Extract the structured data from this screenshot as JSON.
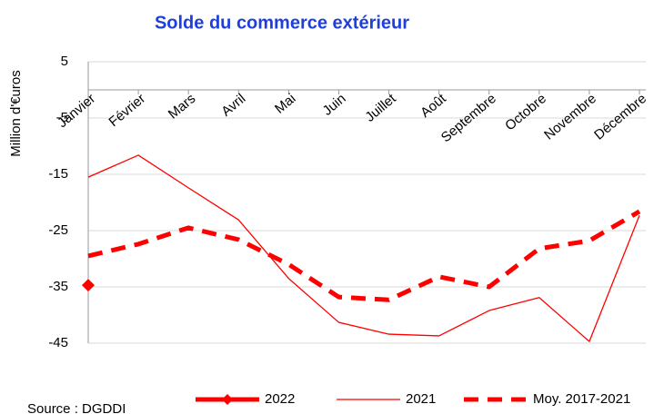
{
  "chart_data": {
    "type": "line",
    "title": "Solde du commerce extérieur",
    "y_label": "Million d'€uros",
    "source": "Source : DGDDI",
    "categories": [
      "Janvier",
      "Février",
      "Mars",
      "Avril",
      "Mai",
      "Juin",
      "Juillet",
      "Août",
      "Septembre",
      "Octobre",
      "Novembre",
      "Décembre"
    ],
    "series": [
      {
        "name": "2022",
        "color": "#ff0000",
        "values": [
          -34.7,
          null,
          null,
          null,
          null,
          null,
          null,
          null,
          null,
          null,
          null,
          null
        ]
      },
      {
        "name": "2021",
        "color": "#ff0000",
        "values": [
          -15.5,
          -11.6,
          -17.4,
          -23.1,
          -33.5,
          -41.3,
          -43.4,
          -43.7,
          -39.2,
          -36.9,
          -44.7,
          -22.3
        ]
      },
      {
        "name": "Moy. 2017-2021",
        "color": "#ff0000",
        "values": [
          -29.5,
          -27.4,
          -24.5,
          -26.6,
          -31.0,
          -36.8,
          -37.3,
          -33.2,
          -35.0,
          -28.2,
          -26.8,
          -21.6
        ]
      }
    ],
    "ylim": [
      -45,
      5
    ],
    "yticks": [
      5,
      -5,
      -15,
      -25,
      -35,
      -45
    ],
    "grid": true
  }
}
